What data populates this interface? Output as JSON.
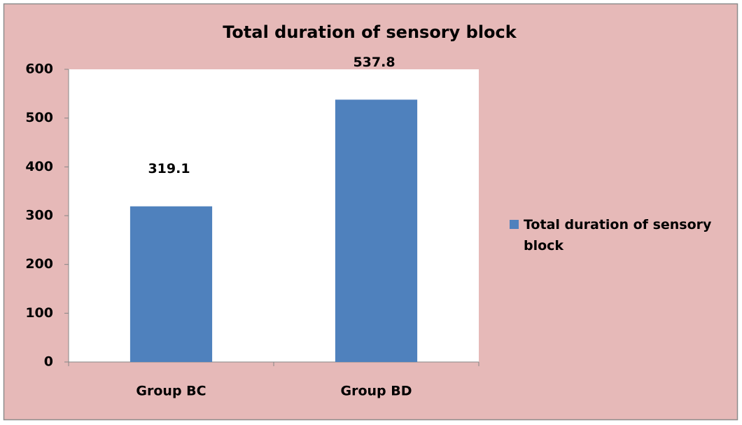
{
  "chart_data": {
    "type": "bar",
    "title": "Total duration of sensory block",
    "categories": [
      "Group BC",
      "Group BD"
    ],
    "series": [
      {
        "name": "Total duration of sensory block",
        "color": "#4f81bd",
        "values": [
          319.1,
          537.8
        ]
      }
    ],
    "ylim": [
      0,
      600
    ],
    "yticks": [
      0,
      100,
      200,
      300,
      400,
      500,
      600
    ],
    "legend": "right"
  }
}
